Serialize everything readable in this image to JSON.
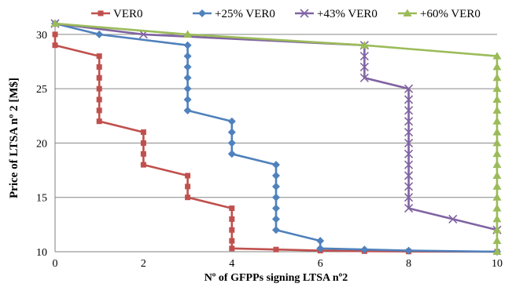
{
  "chart_data": {
    "type": "line",
    "title": "",
    "xlabel": "Nº of GFPPs signing LTSA nº2",
    "ylabel": "Price of LTSA nº 2 [M$]",
    "xlim": [
      0,
      10
    ],
    "ylim": [
      10,
      31
    ],
    "x_ticks": [
      "0",
      "2",
      "4",
      "6",
      "8",
      "10"
    ],
    "y_ticks": [
      "10",
      "15",
      "20",
      "25",
      "30"
    ],
    "grid": "horizontal",
    "legend_position": "top",
    "series": [
      {
        "name": "VER0",
        "color": "#c0504d",
        "marker": "square",
        "points": [
          [
            0,
            30
          ],
          [
            0,
            29
          ],
          [
            1,
            28
          ],
          [
            1,
            27
          ],
          [
            1,
            26
          ],
          [
            1,
            25
          ],
          [
            1,
            24
          ],
          [
            1,
            23
          ],
          [
            1,
            22
          ],
          [
            2,
            21
          ],
          [
            2,
            20
          ],
          [
            2,
            19
          ],
          [
            2,
            18
          ],
          [
            3,
            17
          ],
          [
            3,
            16
          ],
          [
            3,
            15
          ],
          [
            4,
            14
          ],
          [
            4,
            13
          ],
          [
            4,
            12
          ],
          [
            4,
            11
          ],
          [
            4,
            10.3
          ],
          [
            5,
            10.2
          ],
          [
            6,
            10.1
          ],
          [
            7,
            10.05
          ],
          [
            8,
            10.02
          ],
          [
            10,
            10
          ]
        ]
      },
      {
        "name": "+25% VER0",
        "color": "#4f81bd",
        "marker": "diamond",
        "points": [
          [
            0,
            31
          ],
          [
            1,
            30
          ],
          [
            3,
            29
          ],
          [
            3,
            28
          ],
          [
            3,
            27
          ],
          [
            3,
            26
          ],
          [
            3,
            25
          ],
          [
            3,
            24
          ],
          [
            3,
            23
          ],
          [
            4,
            22
          ],
          [
            4,
            21
          ],
          [
            4,
            20
          ],
          [
            4,
            19
          ],
          [
            5,
            18
          ],
          [
            5,
            17
          ],
          [
            5,
            16
          ],
          [
            5,
            15
          ],
          [
            5,
            14
          ],
          [
            5,
            13
          ],
          [
            5,
            12
          ],
          [
            6,
            11
          ],
          [
            6,
            10.3
          ],
          [
            7,
            10.2
          ],
          [
            8,
            10.1
          ],
          [
            10,
            10
          ]
        ]
      },
      {
        "name": "+43% VER0",
        "color": "#8064a2",
        "marker": "x",
        "points": [
          [
            0,
            31
          ],
          [
            2,
            30
          ],
          [
            7,
            29
          ],
          [
            7,
            28
          ],
          [
            7,
            27
          ],
          [
            7,
            26
          ],
          [
            8,
            25
          ],
          [
            8,
            24
          ],
          [
            8,
            23
          ],
          [
            8,
            22
          ],
          [
            8,
            21
          ],
          [
            8,
            20
          ],
          [
            8,
            19
          ],
          [
            8,
            18
          ],
          [
            8,
            17
          ],
          [
            8,
            16
          ],
          [
            8,
            15
          ],
          [
            8,
            14
          ],
          [
            9,
            13
          ],
          [
            10,
            12
          ]
        ]
      },
      {
        "name": "+60% VER0",
        "color": "#9bbb59",
        "marker": "triangle",
        "points": [
          [
            0,
            31
          ],
          [
            3,
            30
          ],
          [
            7,
            29
          ],
          [
            10,
            28
          ],
          [
            10,
            27
          ],
          [
            10,
            26
          ],
          [
            10,
            25
          ],
          [
            10,
            24
          ],
          [
            10,
            23
          ],
          [
            10,
            22
          ],
          [
            10,
            21
          ],
          [
            10,
            20
          ],
          [
            10,
            19
          ],
          [
            10,
            18
          ],
          [
            10,
            17
          ],
          [
            10,
            16
          ],
          [
            10,
            15
          ],
          [
            10,
            14
          ],
          [
            10,
            13
          ],
          [
            10,
            12
          ],
          [
            10,
            11
          ],
          [
            10,
            10
          ]
        ]
      }
    ]
  }
}
